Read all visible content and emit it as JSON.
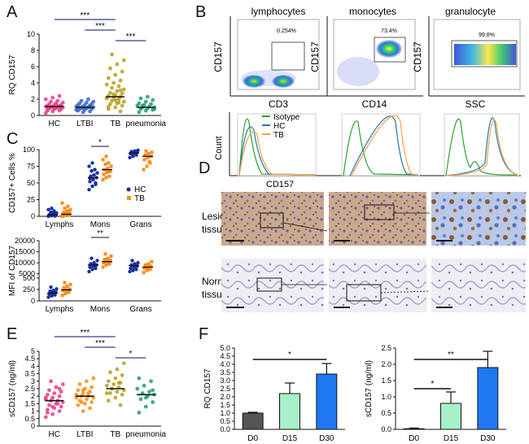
{
  "panel_letters": {
    "a": "A",
    "b": "B",
    "c": "C",
    "d": "D",
    "e": "E",
    "f": "F"
  },
  "flow": {
    "titles": [
      "lymphocytes",
      "monocytes",
      "granulocyte"
    ],
    "gate_pcts": [
      "0.254%",
      "73.4%",
      "99.8%"
    ],
    "x_labels": [
      "CD3",
      "CD14",
      "SSC"
    ],
    "y_label": "CD157",
    "hist_y_label": "Count",
    "hist_x_label": "CD157",
    "legend": [
      "Isotype",
      "HC",
      "TB"
    ],
    "legend_colors": [
      "#2ca02c",
      "#1f77b4",
      "#ff9f40"
    ]
  },
  "tissue": {
    "lesion_label_1": "Lesion",
    "lesion_label_2": "tissue",
    "normal_label_1": "Normal",
    "normal_label_2": "tissue"
  },
  "chart_data": [
    {
      "id": "A",
      "type": "scatter",
      "ylabel": "RQ CD157",
      "categories": [
        "HC",
        "LTBI",
        "TB",
        "pneumonia"
      ],
      "ylim": [
        0,
        10
      ],
      "yticks": [
        "0",
        "2",
        "4",
        "6",
        "8",
        "10"
      ],
      "colors": [
        "#e0408a",
        "#3a66c4",
        "#b4a020",
        "#1f9e78"
      ],
      "medians": [
        1.1,
        1.0,
        2.3,
        1.0
      ],
      "values": [
        [
          0.3,
          0.5,
          0.6,
          0.7,
          0.8,
          0.8,
          0.9,
          0.9,
          1.0,
          1.0,
          1.0,
          1.1,
          1.1,
          1.2,
          1.2,
          1.3,
          1.3,
          1.4,
          1.5,
          1.6,
          1.7,
          1.8,
          2.0,
          2.2,
          2.4,
          0.6,
          0.9,
          1.1,
          1.0,
          1.4
        ],
        [
          0.4,
          0.5,
          0.6,
          0.7,
          0.8,
          0.8,
          0.9,
          1.0,
          1.0,
          1.0,
          1.1,
          1.1,
          1.2,
          1.3,
          1.3,
          1.4,
          1.5,
          1.6,
          1.7,
          1.8,
          2.0,
          0.7,
          0.9,
          1.2,
          1.0
        ],
        [
          0.5,
          0.8,
          1.0,
          1.2,
          1.4,
          1.5,
          1.7,
          1.8,
          2.0,
          2.1,
          2.2,
          2.3,
          2.4,
          2.5,
          2.7,
          2.8,
          3.0,
          3.2,
          3.4,
          3.6,
          3.8,
          4.0,
          4.3,
          4.6,
          5.0,
          5.4,
          5.8,
          6.3,
          6.8,
          7.5,
          1.6,
          2.2,
          2.6,
          3.1,
          1.1,
          1.9
        ],
        [
          0.4,
          0.6,
          0.7,
          0.8,
          0.9,
          1.0,
          1.0,
          1.1,
          1.2,
          1.3,
          1.4,
          1.5,
          1.7,
          1.9,
          2.1,
          2.3,
          0.8,
          1.2
        ]
      ],
      "sig": [
        {
          "pair": [
            0,
            2
          ],
          "label": "***"
        },
        {
          "pair": [
            1,
            2
          ],
          "label": "***"
        },
        {
          "pair": [
            2,
            3
          ],
          "label": "***"
        }
      ]
    },
    {
      "id": "C1",
      "type": "scatter",
      "ylabel": "CD157+ Cells %",
      "categories": [
        "Lymphs",
        "Mons",
        "Grans"
      ],
      "ylim": [
        0,
        100
      ],
      "yticks": [
        "0",
        "25",
        "50",
        "75",
        "100"
      ],
      "series": [
        {
          "name": "HC",
          "color": "#1a2fa0",
          "medians": [
            2,
            58,
            95
          ],
          "values": [
            [
              0,
              1,
              1,
              2,
              2,
              3,
              3,
              4,
              5,
              6,
              8,
              10,
              12,
              0.5,
              1.5
            ],
            [
              40,
              45,
              48,
              52,
              55,
              58,
              60,
              62,
              65,
              68,
              70,
              75,
              80,
              50,
              57
            ],
            [
              88,
              90,
              92,
              94,
              95,
              96,
              97,
              98,
              99,
              93
            ]
          ]
        },
        {
          "name": "TB",
          "color": "#ff8c1a",
          "medians": [
            3,
            70,
            90
          ],
          "values": [
            [
              0,
              1,
              2,
              3,
              4,
              5,
              6,
              8,
              10,
              12,
              15,
              20,
              2.5,
              3.5
            ],
            [
              55,
              58,
              60,
              63,
              66,
              68,
              70,
              72,
              75,
              78,
              80,
              85,
              90,
              67
            ],
            [
              70,
              75,
              80,
              85,
              88,
              90,
              92,
              94,
              96,
              98,
              82
            ]
          ]
        }
      ],
      "sig": [
        {
          "cat": 1,
          "label": "*"
        }
      ]
    },
    {
      "id": "C2",
      "type": "scatter",
      "ylabel": "MFI of CD157",
      "categories": [
        "Lymphs",
        "Mons",
        "Grans"
      ],
      "yticks": [
        "0",
        "250",
        "500",
        "5000",
        "10000",
        "15000",
        "20000"
      ],
      "scale": "broken: 0–500 and 5000–20000",
      "series": [
        {
          "name": "HC",
          "color": "#1a2fa0",
          "medians": [
            170,
            9000,
            8700
          ],
          "values": [
            [
              80,
              110,
              130,
              150,
              170,
              190,
              210,
              230,
              260,
              300,
              140
            ],
            [
              6000,
              7000,
              7500,
              8000,
              8500,
              9000,
              9500,
              10000,
              11000,
              12000,
              8800
            ],
            [
              6000,
              6500,
              7000,
              7500,
              8000,
              8500,
              9000,
              9500,
              10000,
              11000,
              8700
            ]
          ]
        },
        {
          "name": "TB",
          "color": "#ff8c1a",
          "medians": [
            240,
            10500,
            8000
          ],
          "values": [
            [
              120,
              160,
              190,
              220,
              240,
              260,
              290,
              320,
              360,
              400,
              230
            ],
            [
              8000,
              9000,
              9500,
              10000,
              10500,
              11000,
              11500,
              12000,
              13000,
              14000,
              10400
            ],
            [
              5500,
              6500,
              7000,
              7500,
              8000,
              8500,
              9000,
              9500,
              10500,
              7800
            ]
          ]
        }
      ],
      "sig": [
        {
          "cat": 1,
          "label": "**"
        }
      ]
    },
    {
      "id": "E",
      "type": "scatter",
      "ylabel": "sCD157 (ng/ml)",
      "categories": [
        "HC",
        "LTBI",
        "TB",
        "pneumonia"
      ],
      "ylim": [
        0,
        5
      ],
      "yticks": [
        "0",
        "0.5",
        "1",
        "1.5",
        "2",
        "2.5",
        "3",
        "3.5",
        "4",
        "4.5",
        "5"
      ],
      "colors": [
        "#e0408a",
        "#ff8c1a",
        "#b4a020",
        "#1f9e78"
      ],
      "medians": [
        1.7,
        2.0,
        2.5,
        2.1
      ],
      "values": [
        [
          0.6,
          0.8,
          1.0,
          1.1,
          1.2,
          1.3,
          1.4,
          1.5,
          1.6,
          1.7,
          1.7,
          1.8,
          1.9,
          2.0,
          2.1,
          2.2,
          2.3,
          2.4,
          2.6,
          2.8,
          3.0,
          1.5,
          1.9,
          1.3,
          2.5,
          0.9
        ],
        [
          1.0,
          1.2,
          1.4,
          1.5,
          1.6,
          1.7,
          1.8,
          1.9,
          2.0,
          2.0,
          2.1,
          2.2,
          2.3,
          2.4,
          2.5,
          2.6,
          2.8,
          3.0,
          3.2,
          1.6,
          2.2,
          1.9,
          2.4
        ],
        [
          1.4,
          1.7,
          1.9,
          2.1,
          2.2,
          2.3,
          2.4,
          2.5,
          2.6,
          2.7,
          2.8,
          2.9,
          3.0,
          3.2,
          3.4,
          3.6,
          3.8,
          4.2,
          2.5,
          2.9,
          2.2
        ],
        [
          0.9,
          1.3,
          1.6,
          1.8,
          2.0,
          2.1,
          2.2,
          2.3,
          2.5,
          2.7,
          3.0,
          3.2,
          1.9,
          2.4
        ]
      ],
      "sig": [
        {
          "pair": [
            0,
            2
          ],
          "label": "***"
        },
        {
          "pair": [
            1,
            2
          ],
          "label": "***"
        },
        {
          "pair": [
            2,
            3
          ],
          "label": "*"
        }
      ]
    },
    {
      "id": "F1",
      "type": "bar",
      "ylabel": "RQ CD157",
      "categories": [
        "D0",
        "D15",
        "D30"
      ],
      "values": [
        1.0,
        2.2,
        3.4
      ],
      "errors": [
        0.05,
        0.65,
        0.65
      ],
      "colors": [
        "#555555",
        "#a8f0c8",
        "#1f78f0"
      ],
      "ylim": [
        0,
        5
      ],
      "yticks": [
        "0.0",
        "0.5",
        "1.0",
        "1.5",
        "2.0",
        "2.5",
        "3.0",
        "3.5",
        "4.0",
        "4.5",
        "5.0"
      ],
      "sig": [
        {
          "pair": [
            0,
            2
          ],
          "label": "*"
        }
      ]
    },
    {
      "id": "F2",
      "type": "bar",
      "ylabel": "sCD157 (ng/ml)",
      "categories": [
        "D0",
        "D15",
        "D30"
      ],
      "values": [
        0.02,
        0.8,
        1.9
      ],
      "errors": [
        0.02,
        0.35,
        0.5
      ],
      "colors": [
        "#555555",
        "#a8f0c8",
        "#1f78f0"
      ],
      "ylim": [
        0,
        2.5
      ],
      "yticks": [
        "0.0",
        "0.5",
        "1.0",
        "1.5",
        "2.0",
        "2.5"
      ],
      "sig": [
        {
          "pair": [
            0,
            1
          ],
          "label": "*"
        },
        {
          "pair": [
            0,
            2
          ],
          "label": "**"
        }
      ]
    }
  ]
}
